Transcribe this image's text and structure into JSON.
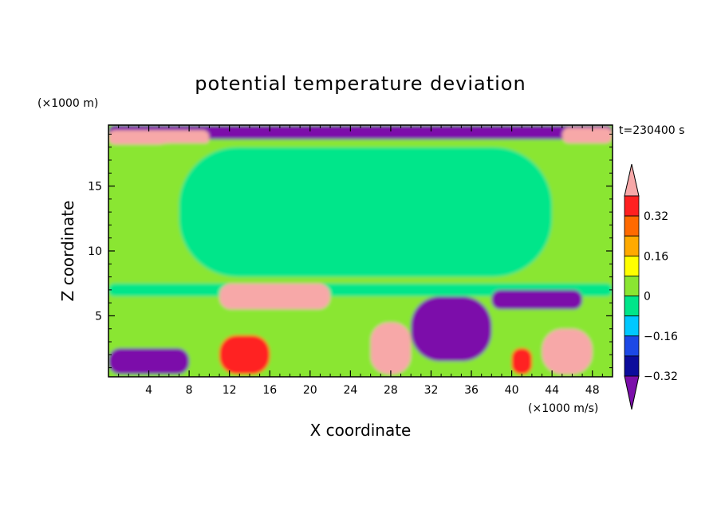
{
  "chart_data": {
    "type": "heatmap",
    "title": "potential temperature deviation",
    "xlabel": "X coordinate",
    "ylabel": "Z coordinate",
    "x_unit": "(×1000 m/s)",
    "y_unit": "(×1000 m)",
    "time_label": "t=230400 s",
    "xlim": [
      0,
      50
    ],
    "ylim": [
      0.3,
      19.7
    ],
    "x_ticks": [
      4,
      8,
      12,
      16,
      20,
      24,
      28,
      32,
      36,
      40,
      44,
      48
    ],
    "y_ticks": [
      5,
      10,
      15
    ],
    "colorbar": {
      "labeled_ticks": [
        0.32,
        0.16,
        0,
        -0.16,
        -0.32
      ],
      "levels": [
        -0.4,
        -0.32,
        -0.24,
        -0.16,
        -0.08,
        0,
        0.08,
        0.16,
        0.24,
        0.32,
        0.4
      ],
      "colors": [
        "#7b0faa",
        "#0c0c9c",
        "#1c48e6",
        "#00c8ff",
        "#00e68a",
        "#8ae632",
        "#ffff00",
        "#ffaa00",
        "#ff6a00",
        "#ff2020",
        "#f7a8a8"
      ]
    },
    "regions": [
      {
        "name": "top-band-negative",
        "level": -0.4,
        "x": [
          0,
          50
        ],
        "z": [
          18.6,
          19.7
        ]
      },
      {
        "name": "top-left-positive",
        "level": 0.4,
        "x": [
          0,
          10
        ],
        "z": [
          18.2,
          19.3
        ]
      },
      {
        "name": "top-right-positive",
        "level": 0.4,
        "x": [
          45,
          50
        ],
        "z": [
          18.3,
          19.5
        ]
      },
      {
        "name": "upper-background",
        "level": 0.04,
        "x": [
          0,
          50
        ],
        "z": [
          7.5,
          18.3
        ]
      },
      {
        "name": "upper-center-near-zero",
        "level": -0.04,
        "x": [
          7,
          44
        ],
        "z": [
          8,
          18
        ]
      },
      {
        "name": "tropopause-cyan",
        "level": -0.12,
        "x": [
          0,
          50
        ],
        "z": [
          6.5,
          7.5
        ]
      },
      {
        "name": "left-low-negative",
        "level": -0.4,
        "x": [
          0,
          8
        ],
        "z": [
          0.5,
          2.5
        ]
      },
      {
        "name": "center-low-negative",
        "level": -0.4,
        "x": [
          30,
          38
        ],
        "z": [
          1.5,
          6.5
        ]
      },
      {
        "name": "right-mid-negative",
        "level": -0.4,
        "x": [
          38,
          47
        ],
        "z": [
          5.5,
          7
        ]
      },
      {
        "name": "warm-patch-12-22",
        "level": 0.4,
        "x": [
          11,
          22
        ],
        "z": [
          5.5,
          7.5
        ]
      },
      {
        "name": "warm-core-28",
        "level": 0.4,
        "x": [
          26,
          30
        ],
        "z": [
          0.5,
          4.5
        ]
      },
      {
        "name": "warm-core-45",
        "level": 0.4,
        "x": [
          43,
          48
        ],
        "z": [
          0.5,
          4
        ]
      },
      {
        "name": "warm-core-13",
        "level": 0.32,
        "x": [
          11,
          16
        ],
        "z": [
          0.5,
          3.5
        ]
      },
      {
        "name": "warm-core-41",
        "level": 0.32,
        "x": [
          40,
          42
        ],
        "z": [
          0.5,
          2.5
        ]
      }
    ]
  }
}
